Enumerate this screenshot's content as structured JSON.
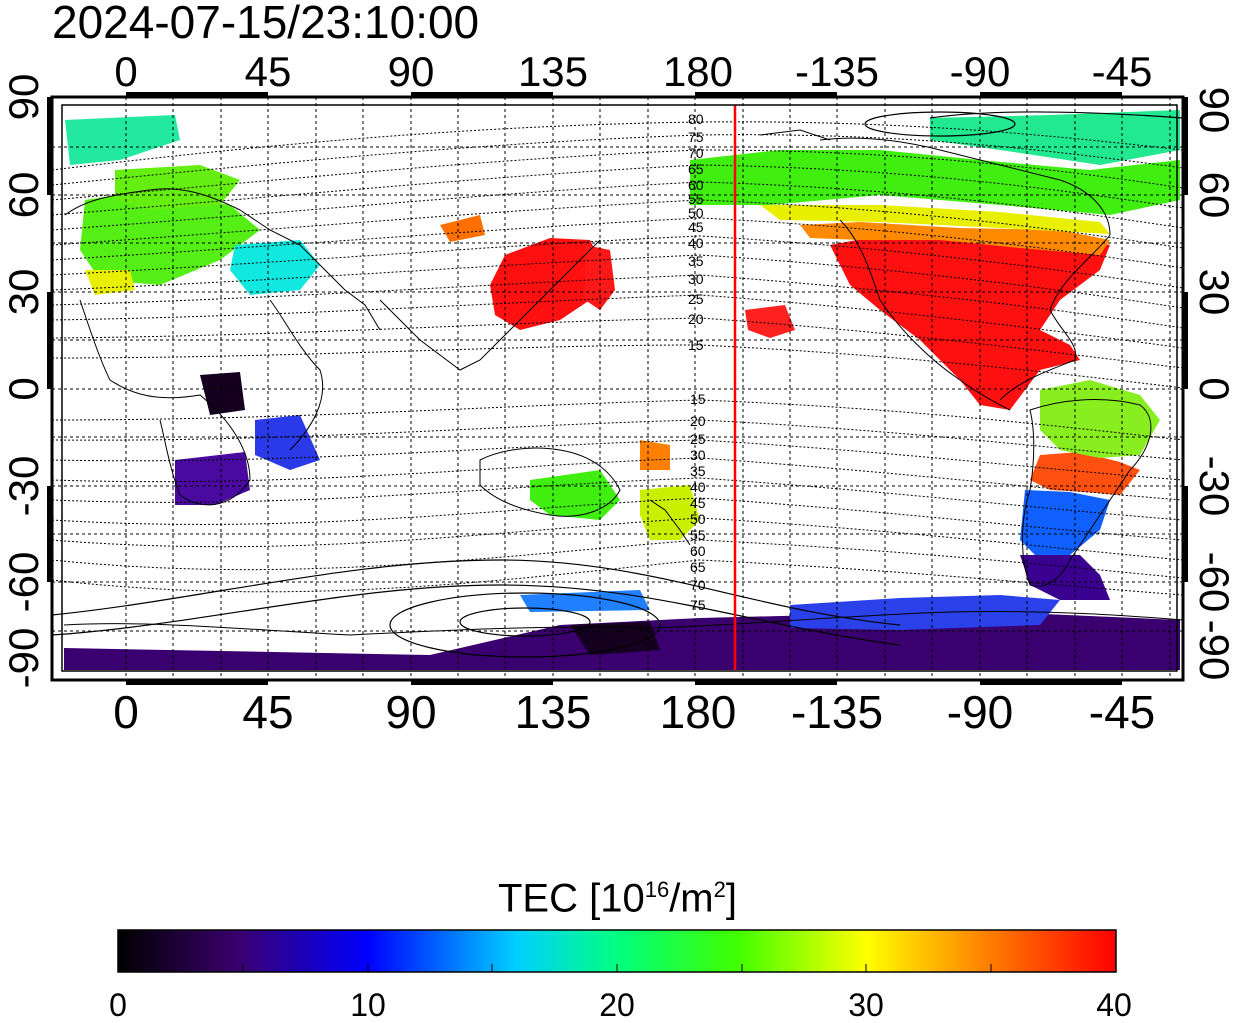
{
  "timestamp": "2024-07-15/23:10:00",
  "map": {
    "top_lon_labels": [
      "0",
      "45",
      "90",
      "135",
      "180",
      "-135",
      "-90",
      "-45"
    ],
    "bottom_lon_labels": [
      "0",
      "45",
      "90",
      "135",
      "180",
      "-135",
      "-90",
      "-45"
    ],
    "left_lat_labels": [
      "90",
      "60",
      "30",
      "0",
      "-30",
      "-60",
      "-90"
    ],
    "right_lat_labels": [
      "90",
      "60",
      "30",
      "0",
      "-30",
      "-60",
      "-90"
    ],
    "contour_labels_north": [
      "80",
      "75",
      "70",
      "65",
      "60",
      "55",
      "50",
      "45",
      "40",
      "35",
      "30",
      "25",
      "20",
      "15"
    ],
    "contour_labels_south": [
      "15",
      "20",
      "25",
      "30",
      "35",
      "40",
      "45",
      "50",
      "55",
      "60",
      "65",
      "70",
      "75"
    ],
    "reference_line_color": "#ff0000"
  },
  "colorbar": {
    "title_main": "TEC  [10",
    "title_sup1": "16",
    "title_mid": "/m",
    "title_sup2": "2",
    "title_end": "]",
    "ticks": [
      "0",
      "10",
      "20",
      "30",
      "40"
    ],
    "colormap": [
      "#000000",
      "#3a006e",
      "#0000ff",
      "#00ffff",
      "#00ff00",
      "#ffff00",
      "#ff8000",
      "#ff0000"
    ]
  }
}
